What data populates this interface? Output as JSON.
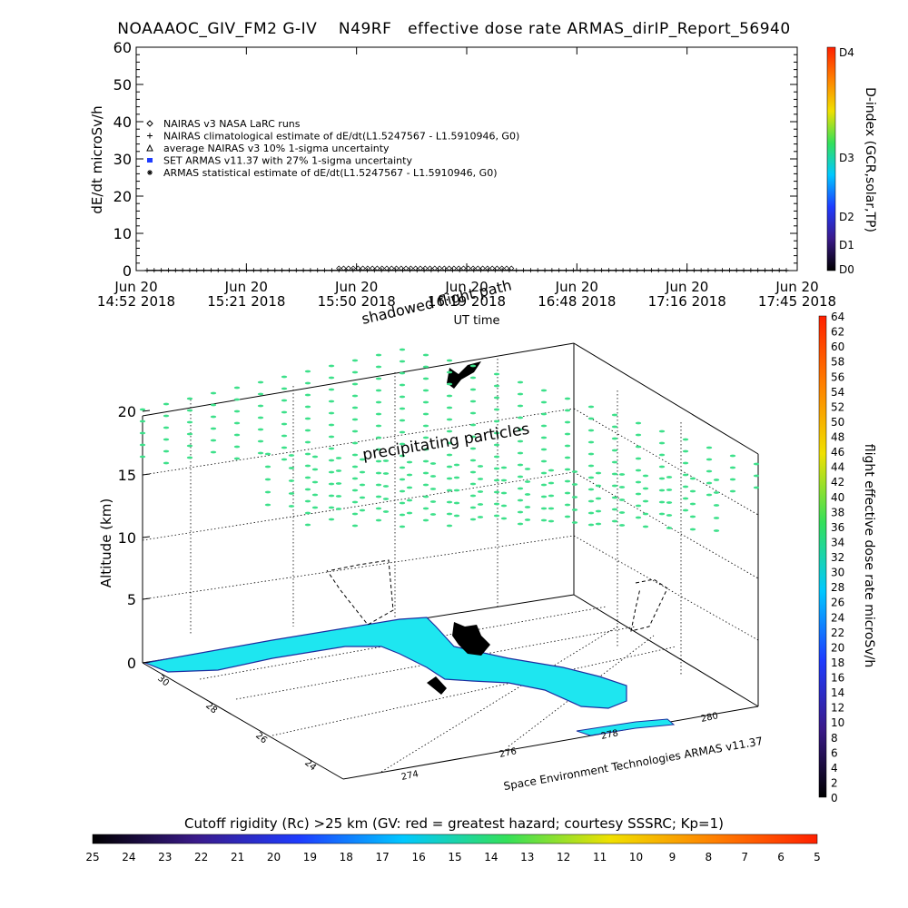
{
  "title": "NOAAAOC_GIV_FM2 G-IV    N49RF   effective dose rate ARMAS_dirIP_Report_56940",
  "colors": {
    "cyan_region": "#1ee6f0",
    "region_outline": "#1c2ea0",
    "green_marker": "#3de08a",
    "track": "#000000"
  },
  "chart_data": [
    {
      "type": "line",
      "panel": "top",
      "ylabel": "dE/dt microSv/h",
      "xlabel": "UT time",
      "ylim": [
        0,
        60
      ],
      "yticks": [
        "0",
        "10",
        "20",
        "30",
        "40",
        "50",
        "60"
      ],
      "xticks": [
        {
          "line1": "Jun 20",
          "line2": "14:52 2018"
        },
        {
          "line1": "Jun 20",
          "line2": "15:21 2018"
        },
        {
          "line1": "Jun 20",
          "line2": "15:50 2018"
        },
        {
          "line1": "Jun 20",
          "line2": "16:19 2018"
        },
        {
          "line1": "Jun 20",
          "line2": "16:48 2018"
        },
        {
          "line1": "Jun 20",
          "line2": "17:16 2018"
        },
        {
          "line1": "Jun 20",
          "line2": "17:45 2018"
        }
      ],
      "legend": [
        {
          "marker": "diamond",
          "label": "NAIRAS v3 NASA LaRC runs"
        },
        {
          "marker": "plus",
          "label": "NAIRAS climatological estimate of dE/dt(L1.5247567 - L1.5910946, G0)"
        },
        {
          "marker": "triangle",
          "label": "average NAIRAS v3 10% 1-sigma uncertainty"
        },
        {
          "marker": "square-blue",
          "label": "SET ARMAS v11.37 with 27% 1-sigma uncertainty"
        },
        {
          "marker": "asterisk",
          "label": "ARMAS statistical estimate of dE/dt(L1.5247567 - L1.5910946, G0)"
        }
      ],
      "legend_position": "top-left",
      "series": [
        {
          "marker": "plus",
          "x_fraction": [
            0.0,
            0.1,
            0.2,
            0.3,
            0.4,
            0.5,
            0.6,
            0.7,
            0.8,
            0.9,
            1.0
          ],
          "values": [
            0.1,
            0.1,
            0.1,
            0.1,
            0.1,
            0.1,
            0.1,
            0.1,
            0.1,
            0.1,
            0.1
          ]
        },
        {
          "marker": "diamond",
          "x_fraction": [
            0.32,
            0.38,
            0.44,
            0.5,
            0.56
          ],
          "values": [
            0.5,
            0.6,
            0.6,
            0.6,
            0.5
          ]
        }
      ],
      "right_colorbar": {
        "label": "D-index (GCR,solar,TP)",
        "ticks": [
          "D4",
          "D3",
          "D2",
          "D1",
          "D0"
        ],
        "colors": [
          "#000000",
          "#3a1a8a",
          "#1e3cff",
          "#00c8ff",
          "#34e05a",
          "#f0e000",
          "#ff8000",
          "#ff2000"
        ]
      }
    },
    {
      "type": "scatter",
      "panel": "3d",
      "zlabel": "Altitude (km)",
      "zticks": [
        "0",
        "5",
        "10",
        "15",
        "20"
      ],
      "lat_ticks": [
        "30",
        "28",
        "26",
        "24"
      ],
      "lon_ticks": [
        "274",
        "276",
        "278",
        "280"
      ],
      "annotations": [
        "shadowed flight path",
        "precipitating particles"
      ],
      "credit": "Space Environment Technologies ARMAS v11.37",
      "right_colorbar": {
        "label": "flight effective dose rate microSv/h",
        "ticks": [
          "0",
          "2",
          "4",
          "6",
          "8",
          "10",
          "12",
          "14",
          "16",
          "18",
          "20",
          "22",
          "24",
          "26",
          "28",
          "30",
          "32",
          "34",
          "36",
          "38",
          "40",
          "42",
          "44",
          "46",
          "48",
          "50",
          "52",
          "54",
          "56",
          "58",
          "60",
          "62",
          "64"
        ],
        "colors": [
          "#000000",
          "#3a1a8a",
          "#1e3cff",
          "#00c8ff",
          "#34e05a",
          "#f0e000",
          "#ff8000",
          "#ff2000"
        ]
      },
      "bottom_colorbar": {
        "label": "Cutoff rigidity (Rc) >25 km (GV: red = greatest hazard; courtesy SSSRC; Kp=1)",
        "ticks": [
          "25",
          "24",
          "23",
          "22",
          "21",
          "20",
          "19",
          "18",
          "17",
          "16",
          "15",
          "14",
          "13",
          "12",
          "11",
          "10",
          "9",
          "8",
          "7",
          "6",
          "5"
        ],
        "colors": [
          "#000000",
          "#3a1a8a",
          "#1e3cff",
          "#00c8ff",
          "#34e05a",
          "#f0e000",
          "#ff8000",
          "#ff2000"
        ]
      }
    }
  ]
}
